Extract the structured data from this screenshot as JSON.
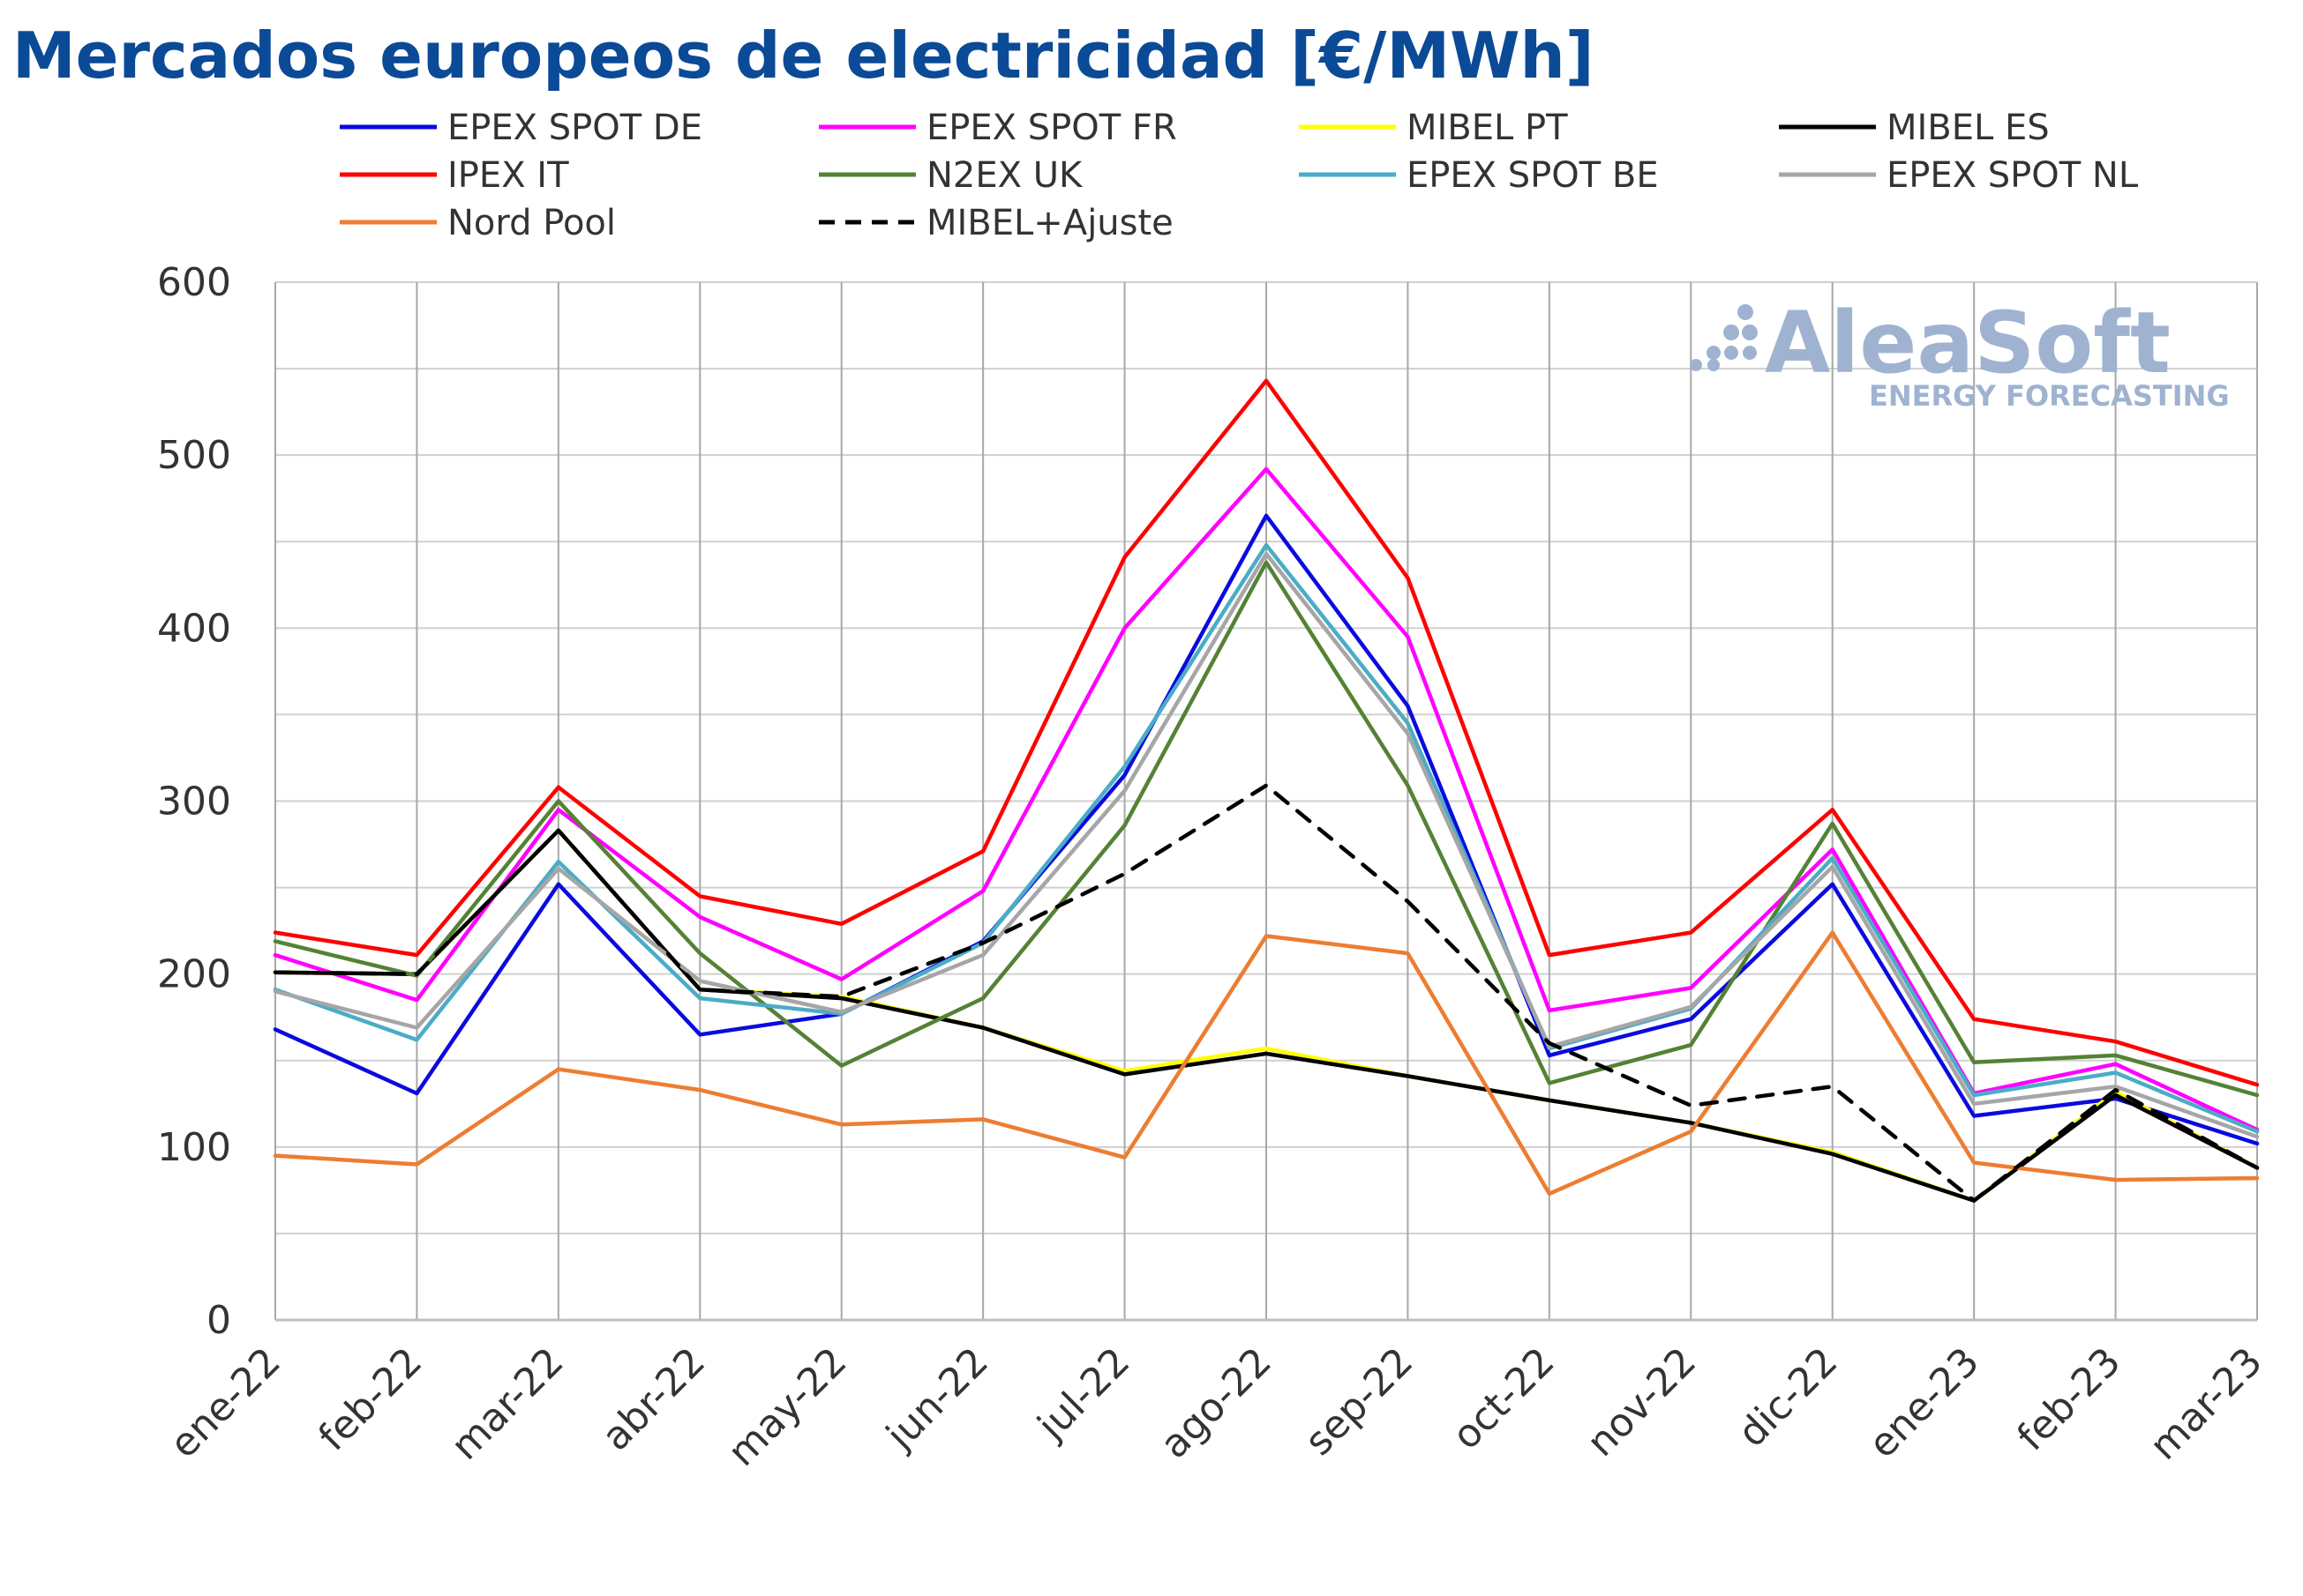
{
  "title": "Mercados europeos de electricidad [€/MWh]",
  "logo": {
    "name": "AleaSoft",
    "tagline": "ENERGY FORECASTING",
    "color": "#9fb3d1"
  },
  "chart_data": {
    "type": "line",
    "title": "Mercados europeos de electricidad [€/MWh]",
    "xlabel": "",
    "ylabel": "",
    "ylim": [
      0,
      600
    ],
    "yticks": [
      0,
      100,
      200,
      300,
      400,
      500,
      600
    ],
    "grid": true,
    "legend_position": "top",
    "categories": [
      "ene-22",
      "feb-22",
      "mar-22",
      "abr-22",
      "may-22",
      "jun-22",
      "jul-22",
      "ago-22",
      "sep-22",
      "oct-22",
      "nov-22",
      "dic-22",
      "ene-23",
      "feb-23",
      "mar-23"
    ],
    "series": [
      {
        "name": "EPEX SPOT DE",
        "color": "#0a0adf",
        "dash": false,
        "values": [
          168,
          131,
          252,
          165,
          177,
          219,
          315,
          465,
          355,
          153,
          174,
          252,
          118,
          128,
          102
        ]
      },
      {
        "name": "EPEX SPOT FR",
        "color": "#ff00ff",
        "dash": false,
        "values": [
          211,
          185,
          295,
          233,
          197,
          248,
          400,
          492,
          395,
          179,
          192,
          272,
          131,
          148,
          110
        ]
      },
      {
        "name": "MIBEL PT",
        "color": "#ffff00",
        "dash": false,
        "values": [
          201,
          200,
          283,
          191,
          187,
          169,
          144,
          157,
          141,
          127,
          114,
          97,
          69,
          132,
          88
        ]
      },
      {
        "name": "MIBEL ES",
        "color": "#000000",
        "dash": false,
        "values": [
          201,
          200,
          283,
          191,
          186,
          169,
          142,
          154,
          141,
          127,
          114,
          96,
          69,
          130,
          88
        ]
      },
      {
        "name": "IPEX IT",
        "color": "#ff0000",
        "dash": false,
        "values": [
          224,
          211,
          308,
          245,
          229,
          271,
          441,
          543,
          429,
          211,
          224,
          295,
          174,
          161,
          136
        ]
      },
      {
        "name": "N2EX UK",
        "color": "#548235",
        "dash": false,
        "values": [
          219,
          199,
          300,
          212,
          147,
          186,
          286,
          438,
          309,
          137,
          159,
          287,
          149,
          153,
          130
        ]
      },
      {
        "name": "EPEX SPOT BE",
        "color": "#4bacc6",
        "dash": false,
        "values": [
          191,
          162,
          265,
          186,
          177,
          218,
          320,
          448,
          345,
          157,
          180,
          267,
          130,
          143,
          109
        ]
      },
      {
        "name": "EPEX SPOT NL",
        "color": "#a6a6a6",
        "dash": false,
        "values": [
          190,
          169,
          261,
          196,
          178,
          211,
          306,
          443,
          339,
          158,
          181,
          262,
          125,
          135,
          106
        ]
      },
      {
        "name": "Nord Pool",
        "color": "#ed7d31",
        "dash": false,
        "values": [
          95,
          90,
          145,
          133,
          113,
          116,
          94,
          222,
          212,
          73,
          109,
          224,
          91,
          81,
          82
        ]
      },
      {
        "name": "MIBEL+Ajuste",
        "color": "#000000",
        "dash": true,
        "values": [
          201,
          200,
          283,
          191,
          187,
          218,
          258,
          309,
          242,
          160,
          124,
          135,
          69,
          133,
          88
        ]
      }
    ]
  }
}
